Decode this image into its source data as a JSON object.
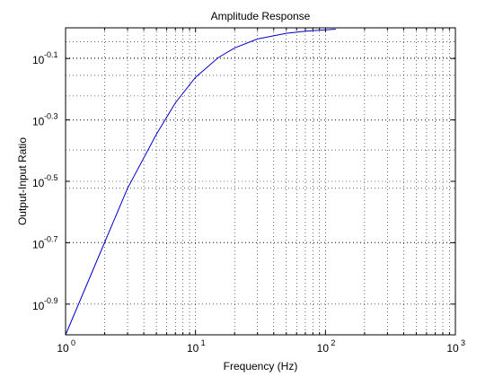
{
  "chart_data": {
    "type": "line",
    "title": "Amplitude Response",
    "xlabel": "Frequency (Hz)",
    "ylabel": "Output-Input Ratio",
    "xscale": "log",
    "yscale": "log",
    "xlim": [
      1,
      1000
    ],
    "ylim_log10": [
      -1.0,
      0.0
    ],
    "grid": "dotted, major and minor",
    "x_tick_labels": [
      {
        "value": 1,
        "base": "10",
        "exp": "0"
      },
      {
        "value": 10,
        "base": "10",
        "exp": "1"
      },
      {
        "value": 100,
        "base": "10",
        "exp": "2"
      },
      {
        "value": 1000,
        "base": "10",
        "exp": "3"
      }
    ],
    "y_tick_labels": [
      {
        "log10": -0.9,
        "base": "10",
        "exp": "-0.9"
      },
      {
        "log10": -0.7,
        "base": "10",
        "exp": "-0.7"
      },
      {
        "log10": -0.5,
        "base": "10",
        "exp": "-0.5"
      },
      {
        "log10": -0.3,
        "base": "10",
        "exp": "-0.3"
      },
      {
        "log10": -0.1,
        "base": "10",
        "exp": "-0.1"
      }
    ],
    "series": [
      {
        "color": "#0000cc",
        "x": [
          1,
          2,
          3,
          5,
          7,
          10,
          15,
          20,
          30,
          50,
          70,
          100,
          120
        ],
        "y": [
          0.1,
          0.2,
          0.3,
          0.45,
          0.57,
          0.69,
          0.8,
          0.86,
          0.92,
          0.96,
          0.975,
          0.985,
          0.99
        ]
      }
    ]
  }
}
